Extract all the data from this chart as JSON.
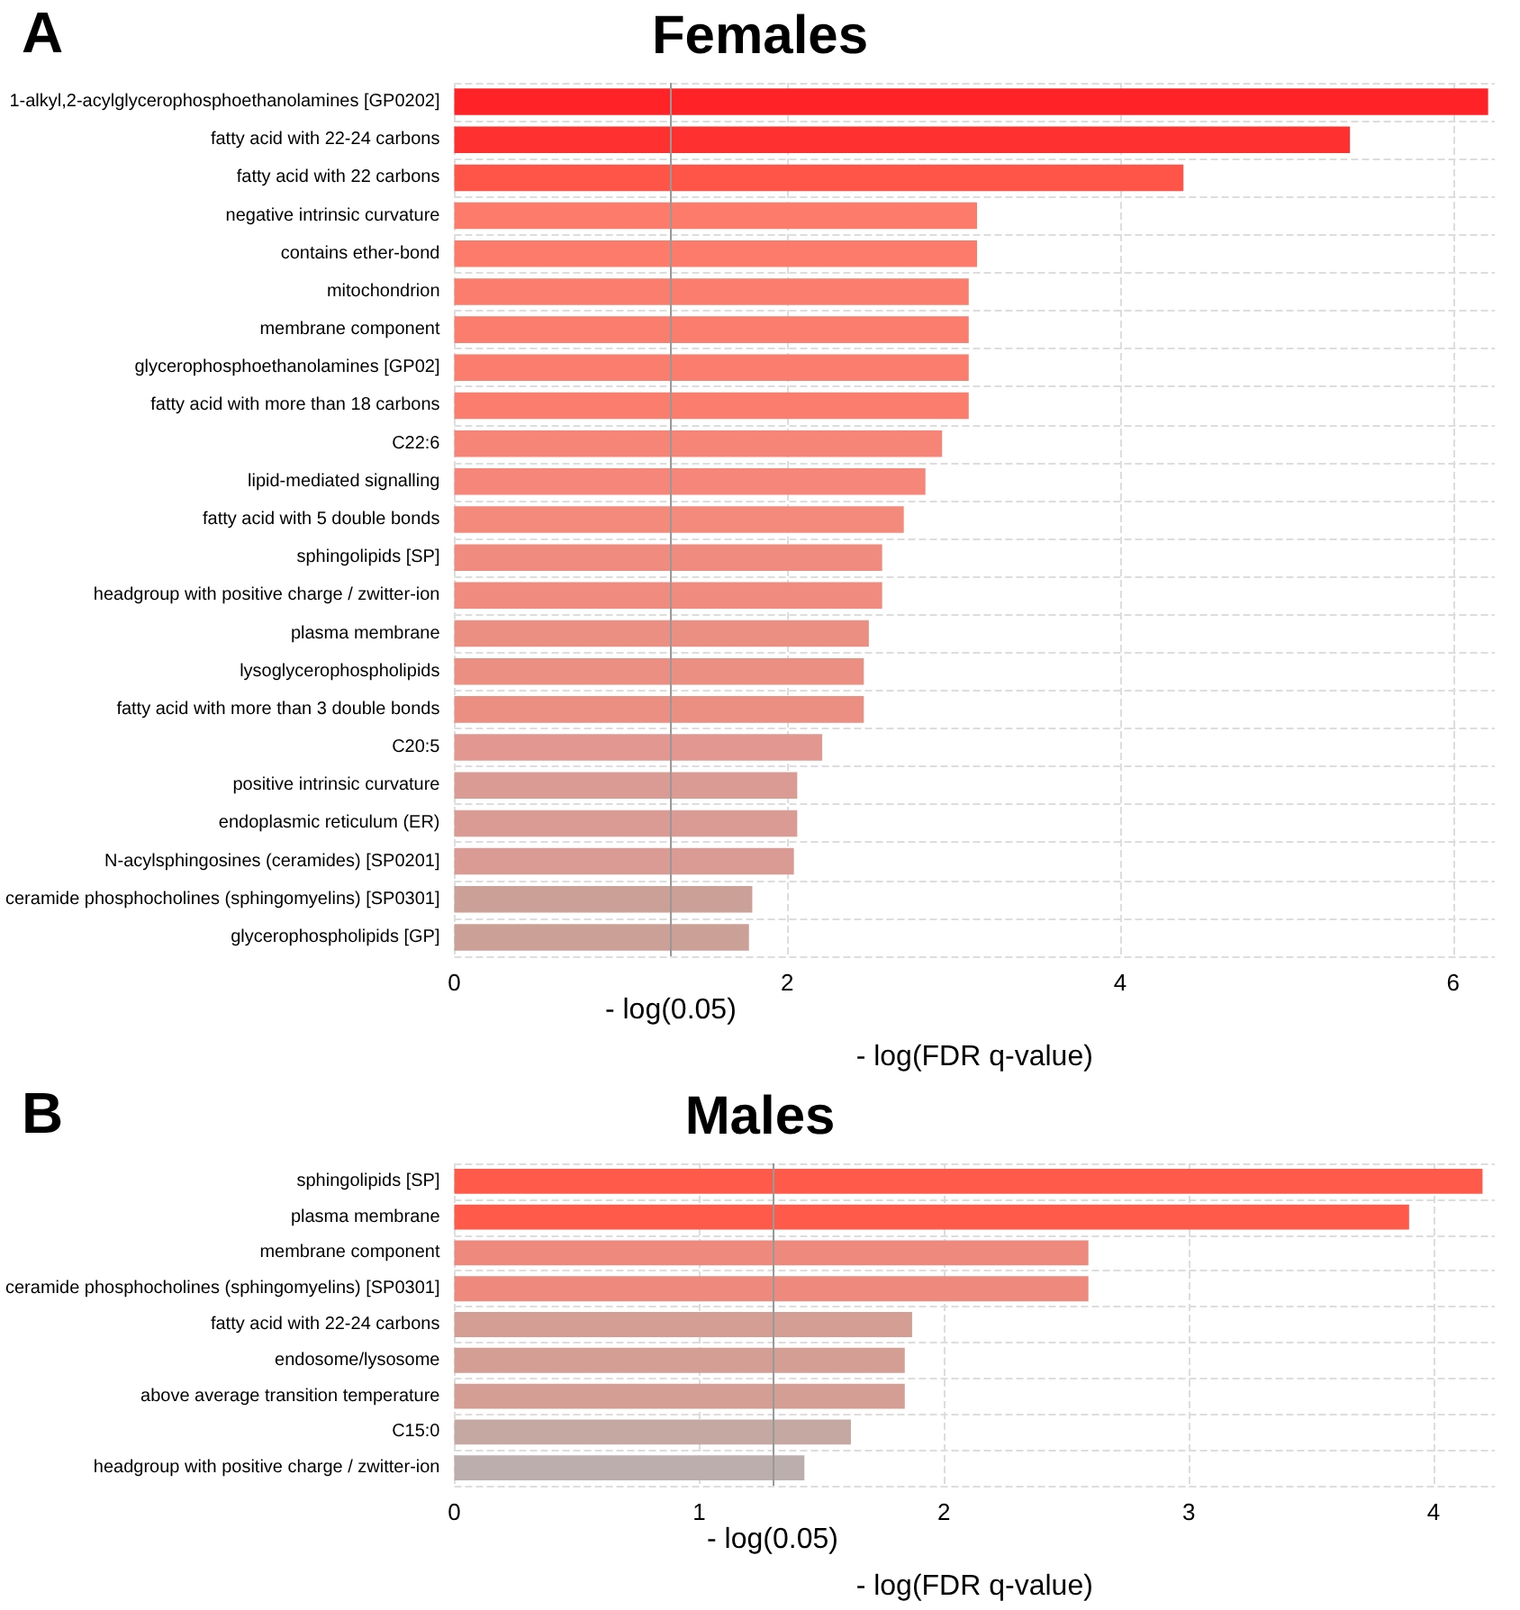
{
  "chart_data": [
    {
      "type": "bar",
      "orientation": "horizontal",
      "title": "Females",
      "xlabel": "- log(FDR q-value)",
      "annotations": [
        "A"
      ],
      "categories": [
        "1-alkyl,2-acylglycerophosphoethanolamines [GP0202]",
        "fatty acid with 22-24 carbons",
        "fatty acid with 22 carbons",
        "negative intrinsic curvature",
        "contains ether-bond",
        "mitochondrion",
        "membrane component",
        "glycerophosphoethanolamines [GP02]",
        "fatty acid with more than 18 carbons",
        "C22:6",
        "lipid-mediated signalling",
        "fatty acid with 5 double bonds",
        "sphingolipids [SP]",
        "headgroup with positive charge / zwitter-ion",
        "plasma membrane",
        "lysoglycerophospholipids",
        "fatty acid with more than 3 double bonds",
        "C20:5",
        "positive intrinsic curvature",
        "endoplasmic reticulum (ER)",
        "N-acylsphingosines (ceramides) [SP0201]",
        "ceramide phosphocholines (sphingomyelins) [SP0301]",
        "glycerophospholipids [GP]"
      ],
      "values": [
        6.21,
        5.38,
        4.38,
        3.14,
        3.14,
        3.09,
        3.09,
        3.09,
        3.09,
        2.93,
        2.83,
        2.7,
        2.57,
        2.57,
        2.49,
        2.46,
        2.46,
        2.21,
        2.06,
        2.06,
        2.04,
        1.79,
        1.77
      ],
      "colors": [
        "#ff2226",
        "#ff3030",
        "#ff5548",
        "#fd7b6b",
        "#fd7b6b",
        "#fb7d6d",
        "#fb7d6d",
        "#fb7d6d",
        "#fb7d6d",
        "#f68578",
        "#f6857a",
        "#f48a7c",
        "#f08b7f",
        "#f08b7f",
        "#eb8f82",
        "#eb8f82",
        "#eb8f82",
        "#e29890",
        "#d99b93",
        "#d99b93",
        "#d99b93",
        "#cba097",
        "#cba097"
      ],
      "xlim": [
        0,
        6.25
      ],
      "xticks": [
        0,
        2,
        4,
        6
      ],
      "ref_lines": [
        {
          "axis": "x",
          "value": 1.301,
          "label": "- log(0.05)",
          "color": "#999999"
        }
      ],
      "grid": true
    },
    {
      "type": "bar",
      "orientation": "horizontal",
      "title": "Males",
      "xlabel": "- log(FDR q-value)",
      "annotations": [
        "B"
      ],
      "categories": [
        "sphingolipids [SP]",
        "plasma membrane",
        "membrane component",
        "ceramide phosphocholines (sphingomyelins) [SP0301]",
        "fatty acid with 22-24 carbons",
        "endosome/lysosome",
        "above average transition temperature",
        "C15:0",
        "headgroup with positive charge / zwitter-ion"
      ],
      "values": [
        4.2,
        3.9,
        2.59,
        2.59,
        1.87,
        1.84,
        1.84,
        1.62,
        1.43
      ],
      "colors": [
        "#ff5a4a",
        "#ff5a4a",
        "#ed8a7d",
        "#ed8a7d",
        "#d49e95",
        "#d49e95",
        "#d49e95",
        "#c6a8a2",
        "#bbaeac"
      ],
      "xlim": [
        0,
        4.25
      ],
      "xticks": [
        0,
        1,
        2,
        3,
        4
      ],
      "ref_lines": [
        {
          "axis": "x",
          "value": 1.301,
          "label": "- log(0.05)",
          "color": "#999999"
        }
      ],
      "grid": true
    }
  ]
}
